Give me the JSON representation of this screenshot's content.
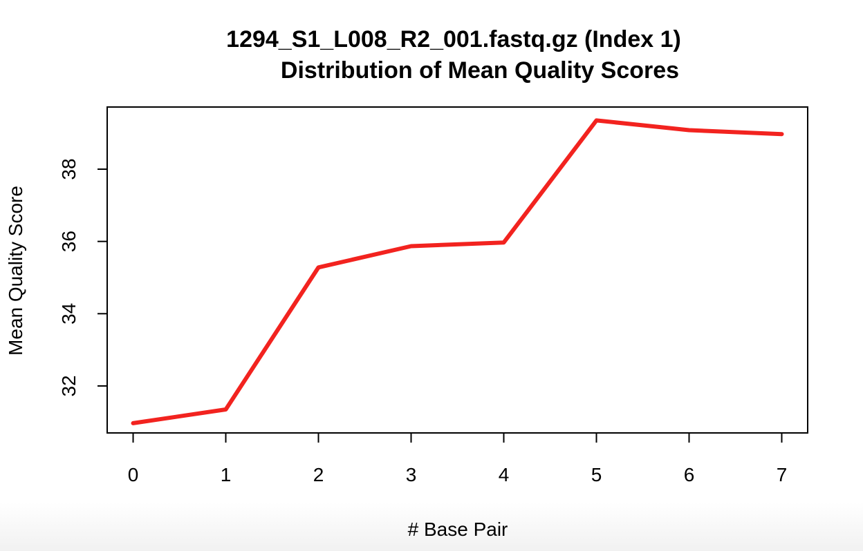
{
  "chart_data": {
    "type": "line",
    "title": [
      "1294_S1_L008_R2_001.fastq.gz (Index 1)",
      "Distribution of Mean Quality Scores"
    ],
    "xlabel": "# Base Pair",
    "ylabel": "Mean Quality Score",
    "x": [
      0,
      1,
      2,
      3,
      4,
      5,
      6,
      7
    ],
    "series": [
      {
        "values": [
          30.97,
          31.35,
          35.28,
          35.87,
          35.97,
          39.35,
          39.08,
          38.97
        ],
        "color": "#f2231f"
      }
    ],
    "xticks": [
      "0",
      "1",
      "2",
      "3",
      "4",
      "5",
      "6",
      "7"
    ],
    "yticks": [
      "32",
      "34",
      "36",
      "38"
    ],
    "xlim": [
      -0.28,
      7.28
    ],
    "ylim": [
      30.7,
      39.72
    ],
    "grid": false,
    "legend": "none"
  }
}
